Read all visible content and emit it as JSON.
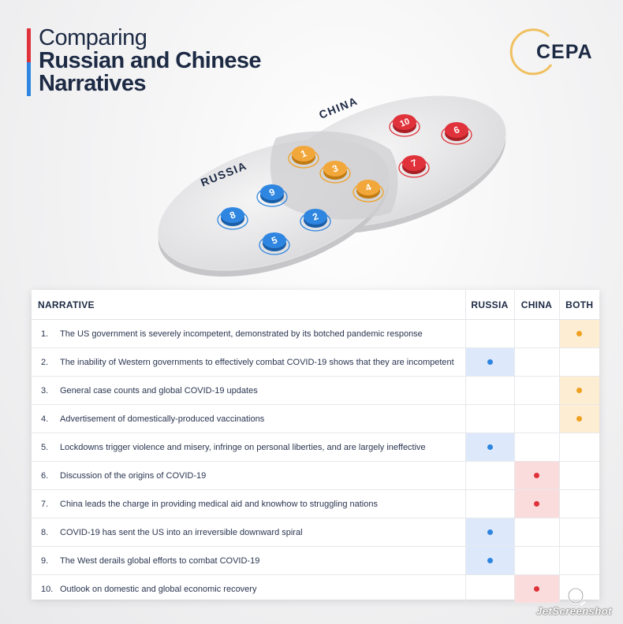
{
  "header": {
    "title_line1": "Comparing",
    "title_line2": "Russian and Chinese",
    "title_line3": "Narratives",
    "accent_colors": [
      "#e0323a",
      "#2f86e0"
    ]
  },
  "logo": {
    "text": "CEPA",
    "ring_color": "#f0c060"
  },
  "diagram": {
    "russia_label": "RUSSIA",
    "china_label": "CHINA",
    "russia_only": [
      "2",
      "5",
      "8",
      "9"
    ],
    "china_only": [
      "6",
      "7",
      "10"
    ],
    "both": [
      "1",
      "3",
      "4"
    ],
    "colors": {
      "russia": "#2f86e0",
      "china": "#e0323a",
      "both": "#f0a020"
    }
  },
  "table": {
    "headers": {
      "narrative": "NARRATIVE",
      "russia": "RUSSIA",
      "china": "CHINA",
      "both": "BOTH"
    },
    "rows": [
      {
        "num": "1.",
        "text": "The US government is severely incompetent, demonstrated by its botched pandemic response",
        "group": "both"
      },
      {
        "num": "2.",
        "text": "The inability of Western governments to effectively combat COVID-19 shows that they are incompetent",
        "group": "russia"
      },
      {
        "num": "3.",
        "text": "General case counts and global COVID-19 updates",
        "group": "both"
      },
      {
        "num": "4.",
        "text": "Advertisement of domestically-produced vaccinations",
        "group": "both"
      },
      {
        "num": "5.",
        "text": "Lockdowns trigger violence and misery, infringe on personal liberties, and are largely ineffective",
        "group": "russia"
      },
      {
        "num": "6.",
        "text": "Discussion of the origins of COVID-19",
        "group": "china"
      },
      {
        "num": "7.",
        "text": "China leads the charge in providing medical aid and knowhow to struggling nations",
        "group": "china"
      },
      {
        "num": "8.",
        "text": "COVID-19 has sent the US into an irreversible downward spiral",
        "group": "russia"
      },
      {
        "num": "9.",
        "text": "The West derails global efforts to combat COVID-19",
        "group": "russia"
      },
      {
        "num": "10.",
        "text": "Outlook on domestic and global economic recovery",
        "group": "china"
      }
    ]
  },
  "watermark": {
    "text": "JetScreenshot"
  }
}
